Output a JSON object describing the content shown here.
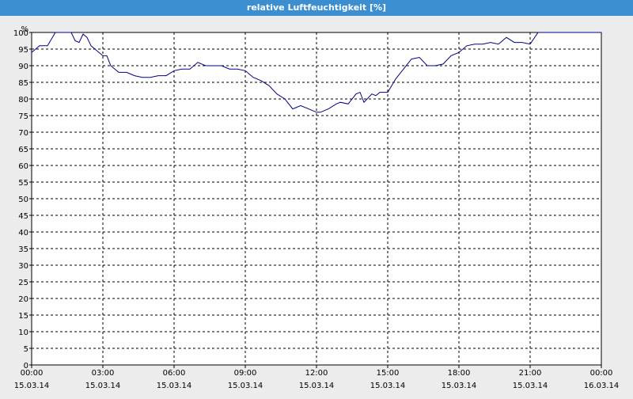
{
  "window": {
    "title": "relative Luftfeuchtigkeit [%]"
  },
  "chart_data": {
    "type": "line",
    "title": "relative Luftfeuchtigkeit [%]",
    "ylabel": "%",
    "ylim": [
      0,
      100
    ],
    "yticks": [
      0,
      5,
      10,
      15,
      20,
      25,
      30,
      35,
      40,
      45,
      50,
      55,
      60,
      65,
      70,
      75,
      80,
      85,
      90,
      95,
      100
    ],
    "grid": true,
    "x_ticks": [
      {
        "time": "00:00",
        "date": "15.03.14"
      },
      {
        "time": "03:00",
        "date": "15.03.14"
      },
      {
        "time": "06:00",
        "date": "15.03.14"
      },
      {
        "time": "09:00",
        "date": "15.03.14"
      },
      {
        "time": "12:00",
        "date": "15.03.14"
      },
      {
        "time": "15:00",
        "date": "15.03.14"
      },
      {
        "time": "18:00",
        "date": "15.03.14"
      },
      {
        "time": "21:00",
        "date": "15.03.14"
      },
      {
        "time": "00:00",
        "date": "16.03.14"
      }
    ],
    "line_color": "#00008b",
    "series": [
      {
        "x": [
          "15.03.14 00:00",
          "15.03.14 00:20",
          "15.03.14 00:40",
          "15.03.14 00:50",
          "15.03.14 01:00",
          "15.03.14 01:20",
          "15.03.14 01:40",
          "15.03.14 01:50",
          "15.03.14 02:00",
          "15.03.14 02:10",
          "15.03.14 02:20",
          "15.03.14 02:30",
          "15.03.14 02:40",
          "15.03.14 03:00",
          "15.03.14 03:10",
          "15.03.14 03:20",
          "15.03.14 03:40",
          "15.03.14 04:00",
          "15.03.14 04:20",
          "15.03.14 04:40",
          "15.03.14 05:00",
          "15.03.14 05:20",
          "15.03.14 05:40",
          "15.03.14 06:00",
          "15.03.14 06:20",
          "15.03.14 06:40",
          "15.03.14 07:00",
          "15.03.14 07:20",
          "15.03.14 07:40",
          "15.03.14 08:00",
          "15.03.14 08:20",
          "15.03.14 08:40",
          "15.03.14 09:00",
          "15.03.14 09:20",
          "15.03.14 09:40",
          "15.03.14 10:00",
          "15.03.14 10:20",
          "15.03.14 10:40",
          "15.03.14 11:00",
          "15.03.14 11:20",
          "15.03.14 11:40",
          "15.03.14 11:50",
          "15.03.14 12:00",
          "15.03.14 12:10",
          "15.03.14 12:30",
          "15.03.14 12:50",
          "15.03.14 13:00",
          "15.03.14 13:20",
          "15.03.14 13:40",
          "15.03.14 13:50",
          "15.03.14 14:00",
          "15.03.14 14:20",
          "15.03.14 14:30",
          "15.03.14 14:40",
          "15.03.14 15:00",
          "15.03.14 15:10",
          "15.03.14 15:20",
          "15.03.14 15:40",
          "15.03.14 16:00",
          "15.03.14 16:20",
          "15.03.14 16:40",
          "15.03.14 17:00",
          "15.03.14 17:20",
          "15.03.14 17:40",
          "15.03.14 18:00",
          "15.03.14 18:20",
          "15.03.14 18:40",
          "15.03.14 19:00",
          "15.03.14 19:20",
          "15.03.14 19:40",
          "15.03.14 20:00",
          "15.03.14 20:20",
          "15.03.14 20:40",
          "15.03.14 21:00",
          "15.03.14 21:20",
          "15.03.14 21:40",
          "15.03.14 22:00",
          "15.03.14 22:20",
          "15.03.14 22:40",
          "15.03.14 23:00",
          "15.03.14 23:20",
          "15.03.14 23:40",
          "16.03.14 00:00"
        ],
        "values": [
          94,
          96,
          96,
          98,
          100,
          100,
          100,
          97.5,
          97,
          99.5,
          98.5,
          96,
          95,
          93,
          93,
          90,
          88,
          88,
          87,
          86.5,
          86.5,
          87,
          87,
          88.5,
          89,
          89,
          91,
          90,
          90,
          90,
          89,
          89,
          88.5,
          86.5,
          85.5,
          84,
          81.5,
          80,
          77,
          78,
          77,
          76.5,
          76,
          76,
          77,
          78.5,
          79,
          78.5,
          81.5,
          82,
          79,
          81.5,
          81,
          82,
          82,
          84,
          86,
          89,
          92,
          92.5,
          90,
          90,
          90.5,
          93,
          94,
          96,
          96.5,
          96.5,
          97,
          96.5,
          98.5,
          97,
          97,
          96.5,
          100,
          100,
          100,
          100,
          100,
          100,
          100,
          100,
          100
        ]
      }
    ]
  }
}
